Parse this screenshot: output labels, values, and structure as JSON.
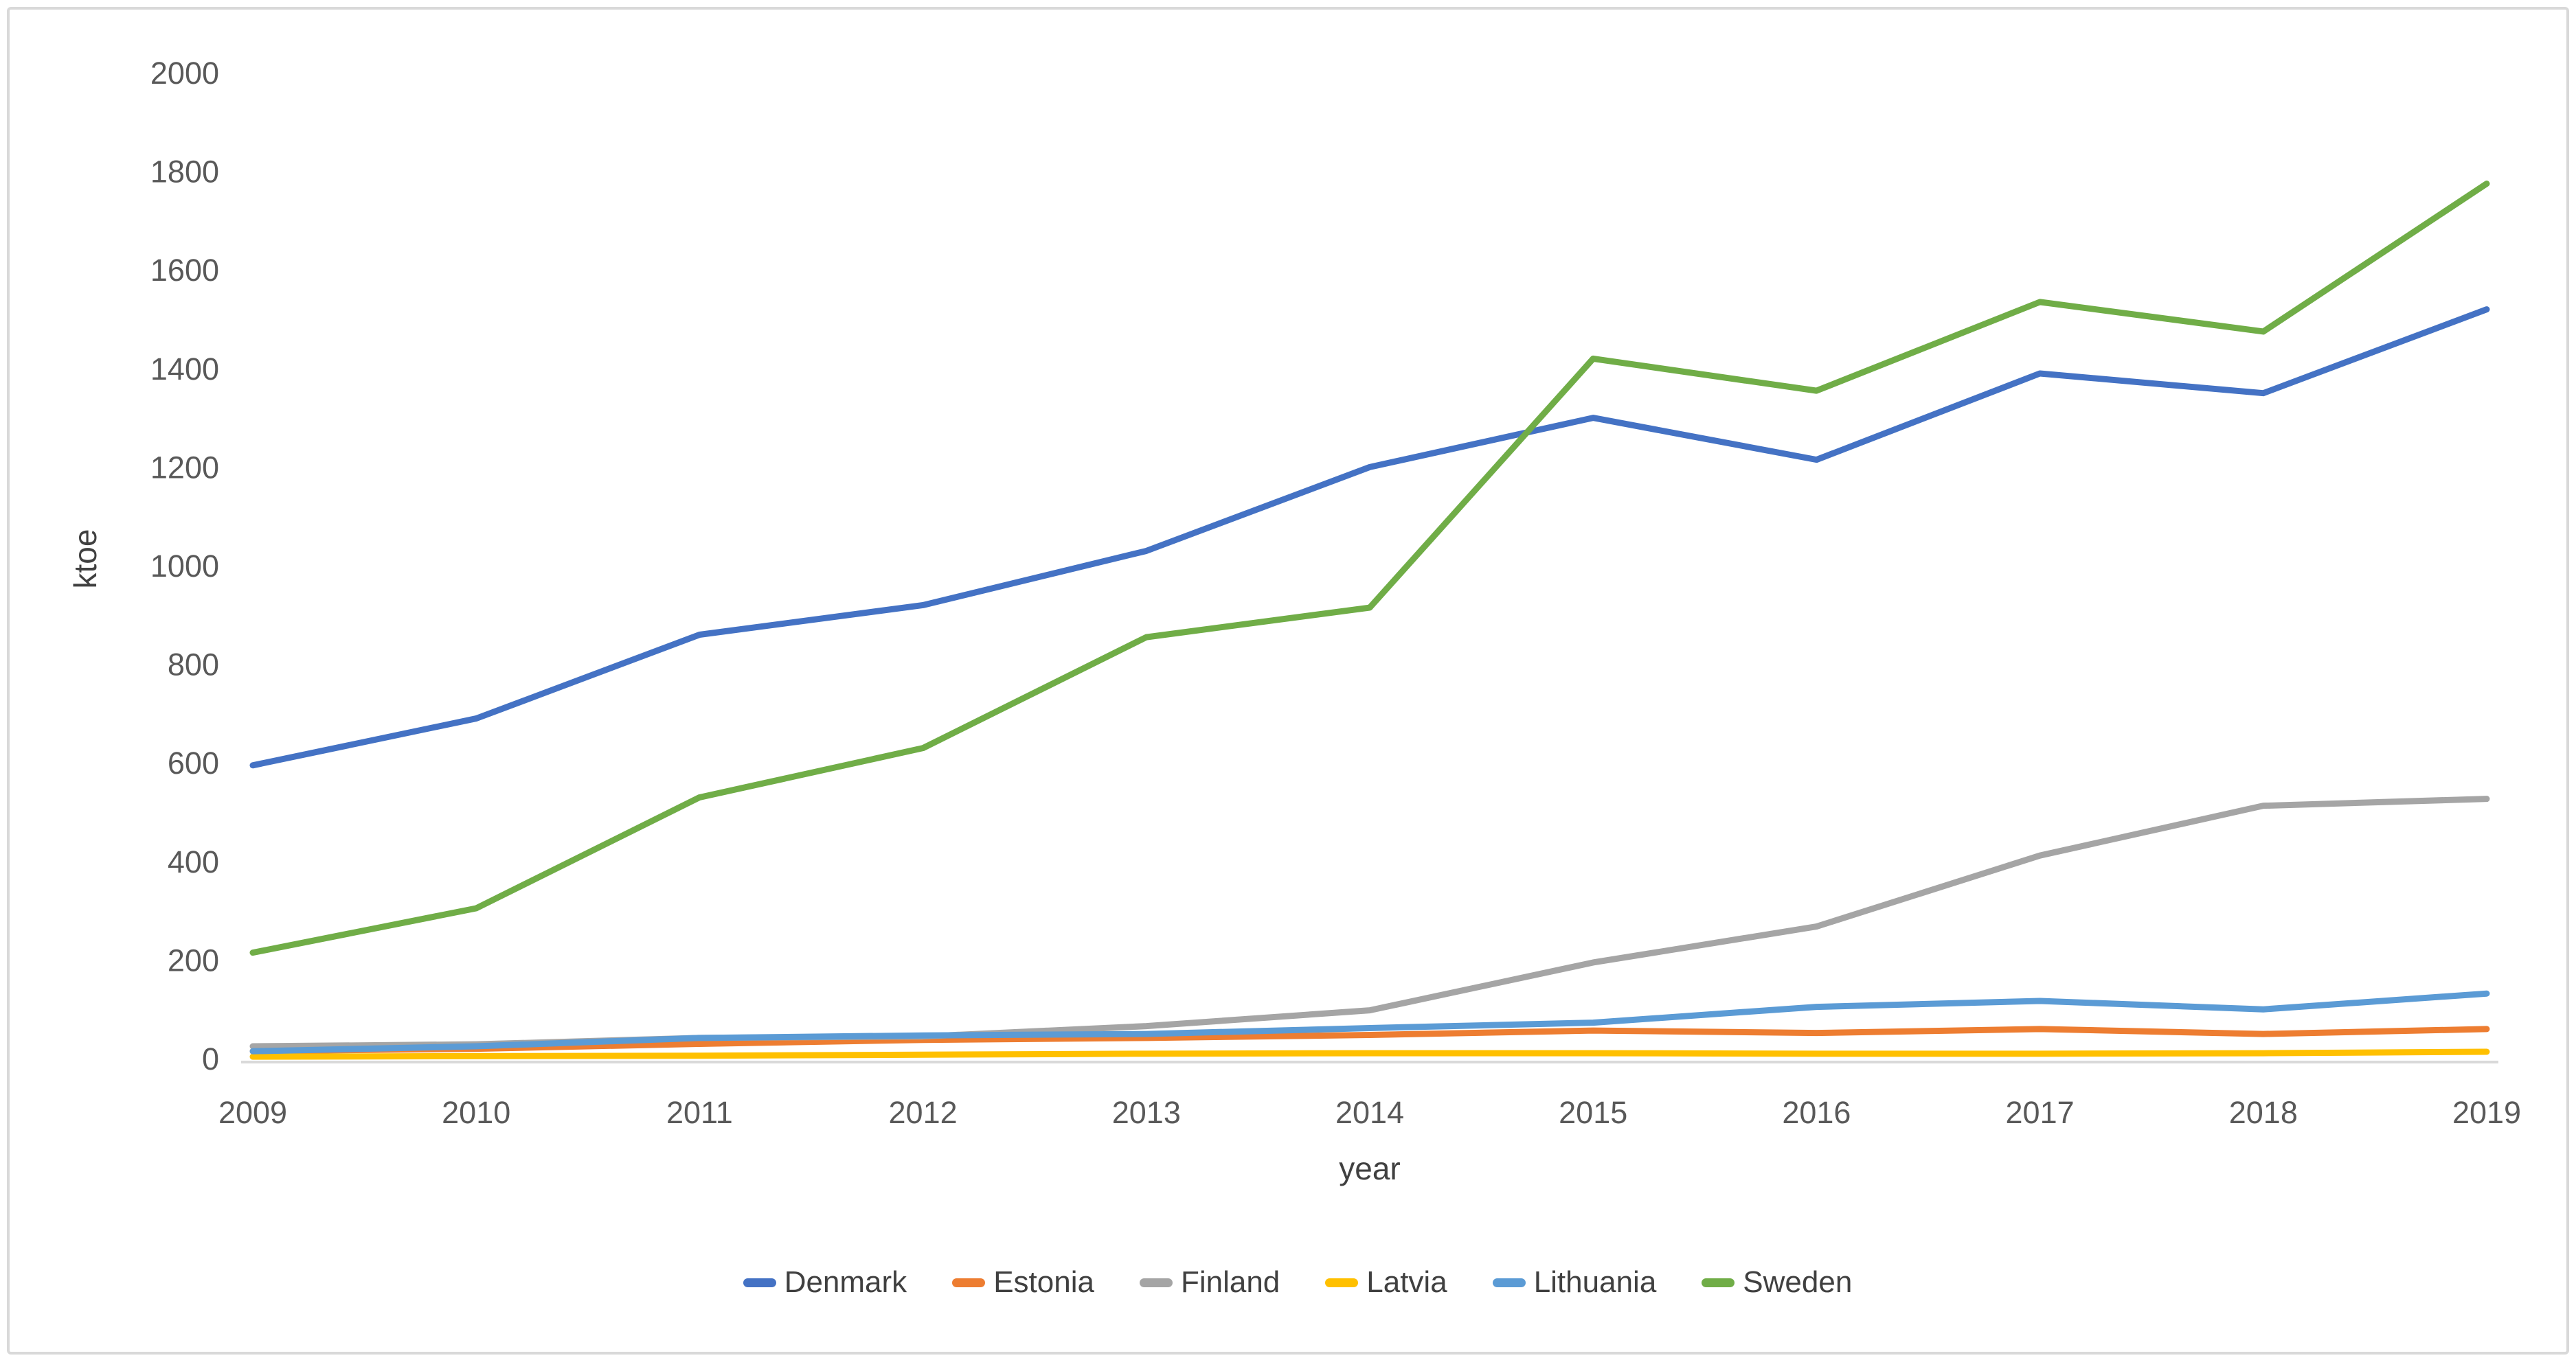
{
  "page": {
    "background": "#ffffff",
    "frame_color": "#d9d9d9"
  },
  "chart_data": {
    "type": "line",
    "title": "",
    "xlabel": "year",
    "ylabel": "ktoe",
    "x": [
      2009,
      2010,
      2011,
      2012,
      2013,
      2014,
      2015,
      2016,
      2017,
      2018,
      2019
    ],
    "series": [
      {
        "name": "Denmark",
        "color": "#4472C4",
        "values": [
          595,
          690,
          860,
          920,
          1030,
          1200,
          1300,
          1215,
          1390,
          1350,
          1520
        ]
      },
      {
        "name": "Estonia",
        "color": "#ED7D31",
        "values": [
          15,
          20,
          30,
          38,
          42,
          48,
          57,
          52,
          60,
          50,
          60
        ]
      },
      {
        "name": "Finland",
        "color": "#A5A5A5",
        "values": [
          25,
          29,
          42,
          45,
          66,
          98,
          195,
          268,
          412,
          513,
          527
        ]
      },
      {
        "name": "Latvia",
        "color": "#FFC000",
        "values": [
          4,
          5,
          6,
          8,
          10,
          11,
          11,
          10,
          10,
          11,
          14
        ]
      },
      {
        "name": "Lithuania",
        "color": "#5B9BD5",
        "values": [
          15,
          25,
          42,
          47,
          50,
          62,
          73,
          105,
          117,
          100,
          132
        ]
      },
      {
        "name": "Sweden",
        "color": "#70AD47",
        "values": [
          215,
          305,
          530,
          630,
          855,
          915,
          1420,
          1355,
          1535,
          1475,
          1775
        ]
      }
    ],
    "ylim": [
      0,
      2000
    ],
    "yticks": [
      0,
      200,
      400,
      600,
      800,
      1000,
      1200,
      1400,
      1600,
      1800,
      2000
    ],
    "grid": false,
    "legend_position": "bottom",
    "axis_text_color": "#595959",
    "axis_line_color": "#d9d9d9"
  }
}
